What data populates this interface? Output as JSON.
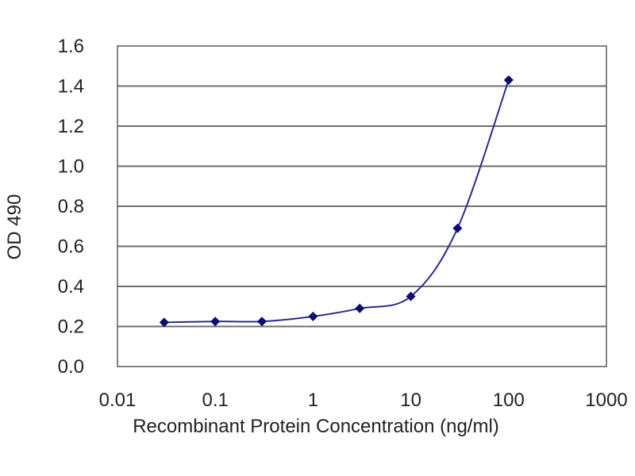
{
  "chart_data": {
    "type": "line",
    "title": "",
    "xlabel": "Recombinant Protein Concentration (ng/ml)",
    "ylabel": "OD 490",
    "xscale": "log",
    "xlim": [
      0.01,
      1000
    ],
    "ylim": [
      0,
      1.6
    ],
    "xticks": [
      "0.01",
      "0.1",
      "1",
      "10",
      "100",
      "1000"
    ],
    "yticks": [
      "0.0",
      "0.2",
      "0.4",
      "0.6",
      "0.8",
      "1.0",
      "1.2",
      "1.4",
      "1.6"
    ],
    "grid": "horizontal",
    "legend": "none",
    "series": [
      {
        "x": [
          0.03,
          0.1,
          0.3,
          1,
          3,
          10,
          30,
          100
        ],
        "y": [
          0.22,
          0.225,
          0.225,
          0.25,
          0.29,
          0.35,
          0.69,
          1.43
        ],
        "color": "#2b2b8f",
        "marker": "diamond",
        "marker_color": "#0c0c6e"
      }
    ],
    "colors": {
      "plot_bg": "#ffffff",
      "grid": "#6e6e6e",
      "frame": "#5a5a5a"
    }
  }
}
